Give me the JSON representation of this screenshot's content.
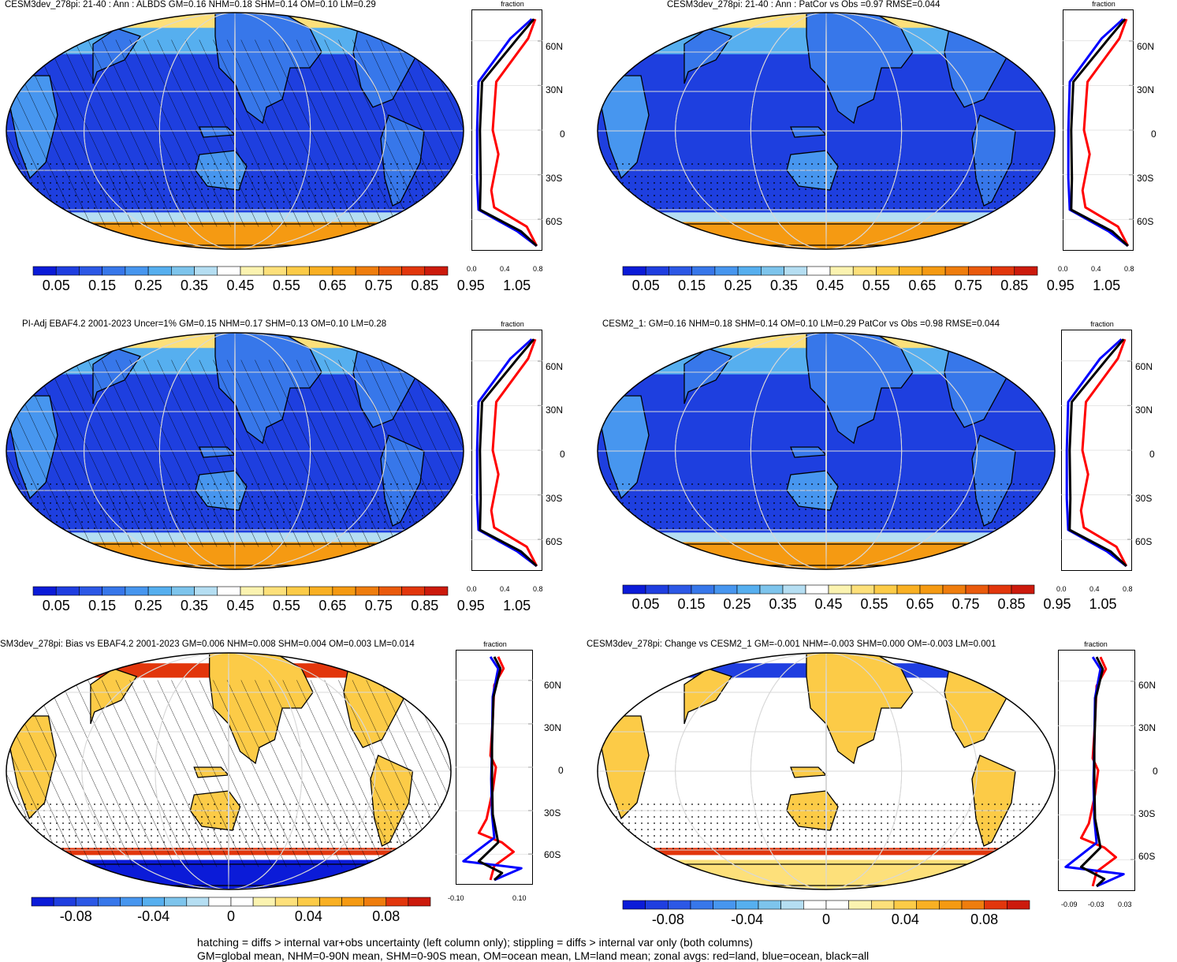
{
  "colors": {
    "palette": [
      "#0b1bd8",
      "#1f3ee0",
      "#2c58e6",
      "#3777ea",
      "#4796ef",
      "#56afef",
      "#7dc4ec",
      "#b5def2",
      "#ffffff",
      "#fbf3b0",
      "#fde07a",
      "#fccb47",
      "#f9b023",
      "#f59a12",
      "#ef7d0d",
      "#ea5a0c",
      "#e2360c",
      "#cc1a0c"
    ],
    "diff_palette": [
      "#0b1bd8",
      "#1f3ee0",
      "#2c58e6",
      "#3777ea",
      "#4796ef",
      "#56afef",
      "#7dc4ec",
      "#b5def2",
      "#ffffff",
      "#ffffff",
      "#fbf3b0",
      "#fde07a",
      "#fccb47",
      "#f9b023",
      "#f59a12",
      "#ef7d0d",
      "#e2360c",
      "#cc1a0c"
    ],
    "land": "#c8d0dc",
    "ocean_fill": "#1e3fdf",
    "zonal_land": "#ff0000",
    "zonal_ocean": "#0000ff",
    "zonal_all": "#000000"
  },
  "panels": [
    {
      "title": "CESM3dev_278pi: 21-40 : Ann : ALBDS GM=0.16 NHM=0.18 SHM=0.14 OM=0.10 LM=0.29",
      "kind": "abs",
      "hatch": true,
      "lat_labels": [
        "60N",
        "30N",
        "0",
        "30S",
        "60S"
      ],
      "axis_title": "fraction",
      "x_ticks": [
        "0.0",
        "0.4",
        "0.8"
      ],
      "cbar_labels": [
        "0.05",
        "0.15",
        "0.25",
        "0.35",
        "0.45",
        "0.55",
        "0.65",
        "0.75",
        "0.85",
        "0.95",
        "1.05"
      ]
    },
    {
      "title": "CESM3dev_278pi: 21-40 : Ann : PatCor vs Obs =0.97 RMSE=0.044",
      "kind": "abs",
      "hatch": false,
      "lat_labels": [
        "60N",
        "30N",
        "0",
        "30S",
        "60S"
      ],
      "axis_title": "fraction",
      "x_ticks": [
        "0.0",
        "0.4",
        "0.8"
      ],
      "cbar_labels": [
        "0.05",
        "0.15",
        "0.25",
        "0.35",
        "0.45",
        "0.55",
        "0.65",
        "0.75",
        "0.85",
        "0.95",
        "1.05"
      ]
    },
    {
      "title": "PI-Adj EBAF4.2 2001-2023 Uncer=1% GM=0.15 NHM=0.17 SHM=0.13 OM=0.10 LM=0.28",
      "kind": "abs",
      "hatch": true,
      "lat_labels": [
        "60N",
        "30N",
        "0",
        "30S",
        "60S"
      ],
      "axis_title": "fraction",
      "x_ticks": [
        "0.0",
        "0.4",
        "0.8"
      ],
      "cbar_labels": [
        "0.05",
        "0.15",
        "0.25",
        "0.35",
        "0.45",
        "0.55",
        "0.65",
        "0.75",
        "0.85",
        "0.95",
        "1.05"
      ]
    },
    {
      "title": "CESM2_1: GM=0.16 NHM=0.18 SHM=0.14 OM=0.10 LM=0.29 PatCor vs Obs =0.98 RMSE=0.044",
      "kind": "abs",
      "hatch": false,
      "lat_labels": [
        "60N",
        "30N",
        "0",
        "30S",
        "60S"
      ],
      "axis_title": "fraction",
      "x_ticks": [
        "0.0",
        "0.4",
        "0.8"
      ],
      "cbar_labels": [
        "0.05",
        "0.15",
        "0.25",
        "0.35",
        "0.45",
        "0.55",
        "0.65",
        "0.75",
        "0.85",
        "0.95",
        "1.05"
      ]
    },
    {
      "title": "SM3dev_278pi: Bias vs EBAF4.2 2001-2023 GM=0.006 NHM=0.008 SHM=0.004 OM=0.003 LM=0.014",
      "kind": "diff",
      "hatch": true,
      "lat_labels": [
        "60N",
        "30N",
        "0",
        "30S",
        "60S"
      ],
      "axis_title": "fraction",
      "x_ticks": [
        "-0.10",
        "0.10"
      ],
      "cbar_labels": [
        "-0.08",
        "-0.04",
        "0",
        "0.04",
        "0.08"
      ]
    },
    {
      "title": "CESM3dev_278pi: Change vs CESM2_1 GM=-0.001 NHM=-0.003 SHM=0.000 OM=-0.003 LM=0.001",
      "kind": "diff",
      "hatch": false,
      "lat_labels": [
        "60N",
        "30N",
        "0",
        "30S",
        "60S"
      ],
      "axis_title": "fraction",
      "x_ticks": [
        "-0.09",
        "-0.03",
        "0.03"
      ],
      "cbar_labels": [
        "-0.08",
        "-0.04",
        "0",
        "0.04",
        "0.08"
      ]
    }
  ],
  "footnotes": [
    "hatching = diffs > internal var+obs uncertainty (left column only); stippling = diffs > internal var only (both columns)",
    "GM=global mean, NHM=0-90N mean, SHM=0-90S mean, OM=ocean mean, LM=land mean; zonal avgs: red=land, blue=ocean, black=all"
  ]
}
